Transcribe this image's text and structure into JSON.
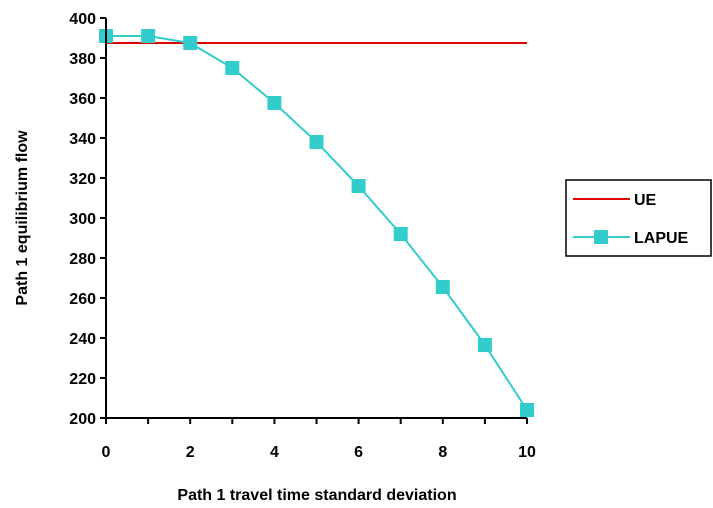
{
  "chart_data": {
    "type": "line",
    "xlabel": "Path 1 travel time standard deviation",
    "ylabel": "Path 1 equilibrium flow",
    "xlim": [
      0,
      10
    ],
    "ylim": [
      200,
      400
    ],
    "xticks": [
      0,
      2,
      4,
      6,
      8,
      10
    ],
    "yticks": [
      200,
      220,
      240,
      260,
      280,
      300,
      320,
      340,
      360,
      380,
      400
    ],
    "grid": false,
    "legend_position": "right",
    "series": [
      {
        "name": "UE",
        "color": "#e00000",
        "marker": "none",
        "x": [
          0,
          10
        ],
        "y": [
          387.5,
          387.5
        ]
      },
      {
        "name": "LAPUE",
        "color": "#33cccc",
        "marker": "square",
        "x": [
          0,
          1,
          2,
          3,
          4,
          5,
          6,
          7,
          8,
          9,
          10
        ],
        "y": [
          391,
          391,
          387.5,
          375,
          357.5,
          338,
          316,
          292,
          265.5,
          236.5,
          204
        ]
      }
    ]
  }
}
